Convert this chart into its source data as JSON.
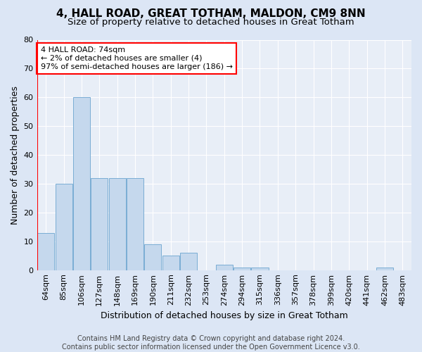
{
  "title": "4, HALL ROAD, GREAT TOTHAM, MALDON, CM9 8NN",
  "subtitle": "Size of property relative to detached houses in Great Totham",
  "xlabel": "Distribution of detached houses by size in Great Totham",
  "ylabel": "Number of detached properties",
  "bar_color": "#c5d8ed",
  "bar_edge_color": "#7aadd4",
  "categories": [
    "64sqm",
    "85sqm",
    "106sqm",
    "127sqm",
    "148sqm",
    "169sqm",
    "190sqm",
    "211sqm",
    "232sqm",
    "253sqm",
    "274sqm",
    "294sqm",
    "315sqm",
    "336sqm",
    "357sqm",
    "378sqm",
    "399sqm",
    "420sqm",
    "441sqm",
    "462sqm",
    "483sqm"
  ],
  "values": [
    13,
    30,
    60,
    32,
    32,
    32,
    9,
    5,
    6,
    0,
    2,
    1,
    1,
    0,
    0,
    0,
    0,
    0,
    0,
    1,
    0
  ],
  "ylim": [
    0,
    80
  ],
  "yticks": [
    0,
    10,
    20,
    30,
    40,
    50,
    60,
    70,
    80
  ],
  "annotation_text": "4 HALL ROAD: 74sqm\n← 2% of detached houses are smaller (4)\n97% of semi-detached houses are larger (186) →",
  "annotation_box_color": "white",
  "annotation_box_edge_color": "red",
  "footnote": "Contains HM Land Registry data © Crown copyright and database right 2024.\nContains public sector information licensed under the Open Government Licence v3.0.",
  "background_color": "#dce6f5",
  "plot_background_color": "#e8eef7",
  "grid_color": "#ffffff",
  "title_fontsize": 11,
  "subtitle_fontsize": 9.5,
  "ylabel_fontsize": 9,
  "xlabel_fontsize": 9,
  "tick_fontsize": 8,
  "annotation_fontsize": 8,
  "footnote_fontsize": 7
}
